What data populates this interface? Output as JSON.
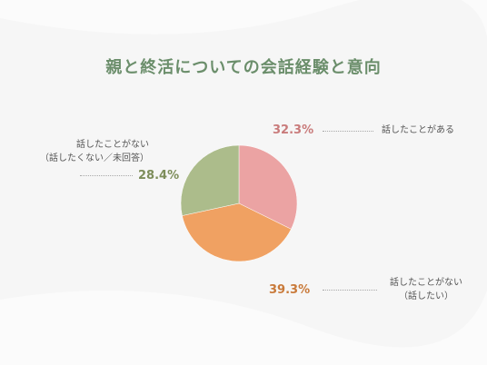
{
  "chart_data": {
    "type": "pie",
    "title": "親と終活についての会話経験と意向",
    "slices": [
      {
        "label_lines": [
          "話したことがある"
        ],
        "value": 32.3,
        "display": "32.3%",
        "color": "#eba3a3",
        "text_color": "#c97b7b"
      },
      {
        "label_lines": [
          "話したことがない",
          "（話したい）"
        ],
        "value": 39.3,
        "display": "39.3%",
        "color": "#f0a162",
        "text_color": "#c97a3a"
      },
      {
        "label_lines": [
          "話したことがない",
          "（話したくない／未回答）"
        ],
        "value": 28.4,
        "display": "28.4%",
        "color": "#acbc8b",
        "text_color": "#7d8d5a"
      }
    ],
    "legend": "none",
    "grid": false
  }
}
